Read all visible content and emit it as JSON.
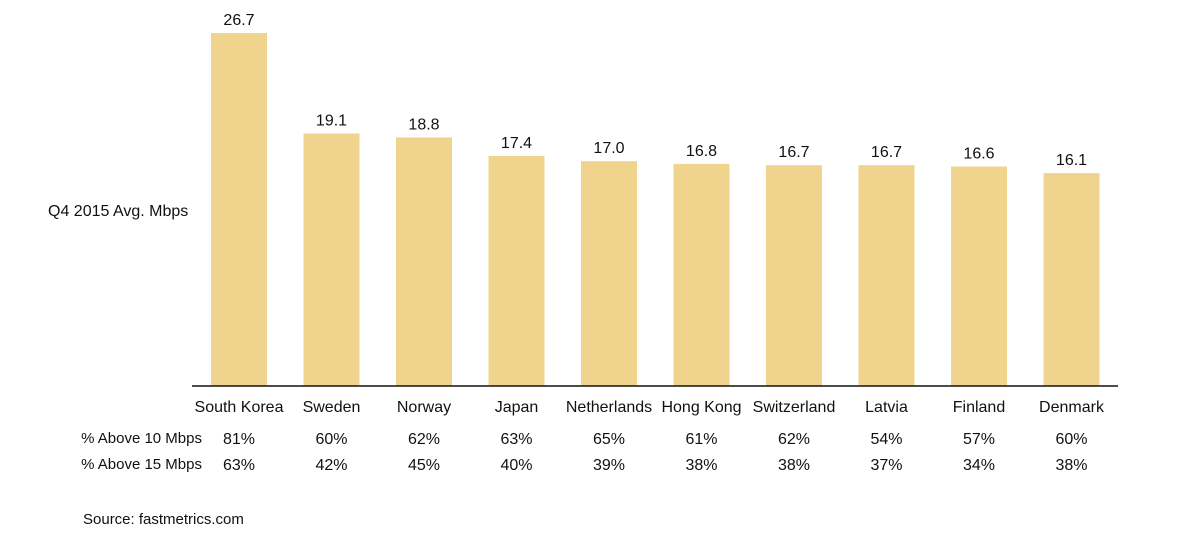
{
  "chart_data": {
    "type": "bar",
    "ylabel": "Q4 2015 Avg. Mbps",
    "categories": [
      "South Korea",
      "Sweden",
      "Norway",
      "Japan",
      "Netherlands",
      "Hong Kong",
      "Switzerland",
      "Latvia",
      "Finland",
      "Denmark"
    ],
    "values": [
      26.7,
      19.1,
      18.8,
      17.4,
      17.0,
      16.8,
      16.7,
      16.7,
      16.6,
      16.1
    ],
    "value_labels": [
      "26.7",
      "19.1",
      "18.8",
      "17.4",
      "17.0",
      "16.8",
      "16.7",
      "16.7",
      "16.6",
      "16.1"
    ],
    "bar_color": "#f0d48e",
    "axis_color": "#111111",
    "ylim": [
      0,
      26.7
    ],
    "grid": false,
    "rows": [
      {
        "label": "% Above 10 Mbps",
        "values": [
          "81%",
          "60%",
          "62%",
          "63%",
          "65%",
          "61%",
          "62%",
          "54%",
          "57%",
          "60%"
        ]
      },
      {
        "label": "% Above 15 Mbps",
        "values": [
          "63%",
          "42%",
          "45%",
          "40%",
          "39%",
          "38%",
          "38%",
          "37%",
          "34%",
          "38%"
        ]
      }
    ],
    "source": "Source: fastmetrics.com"
  }
}
